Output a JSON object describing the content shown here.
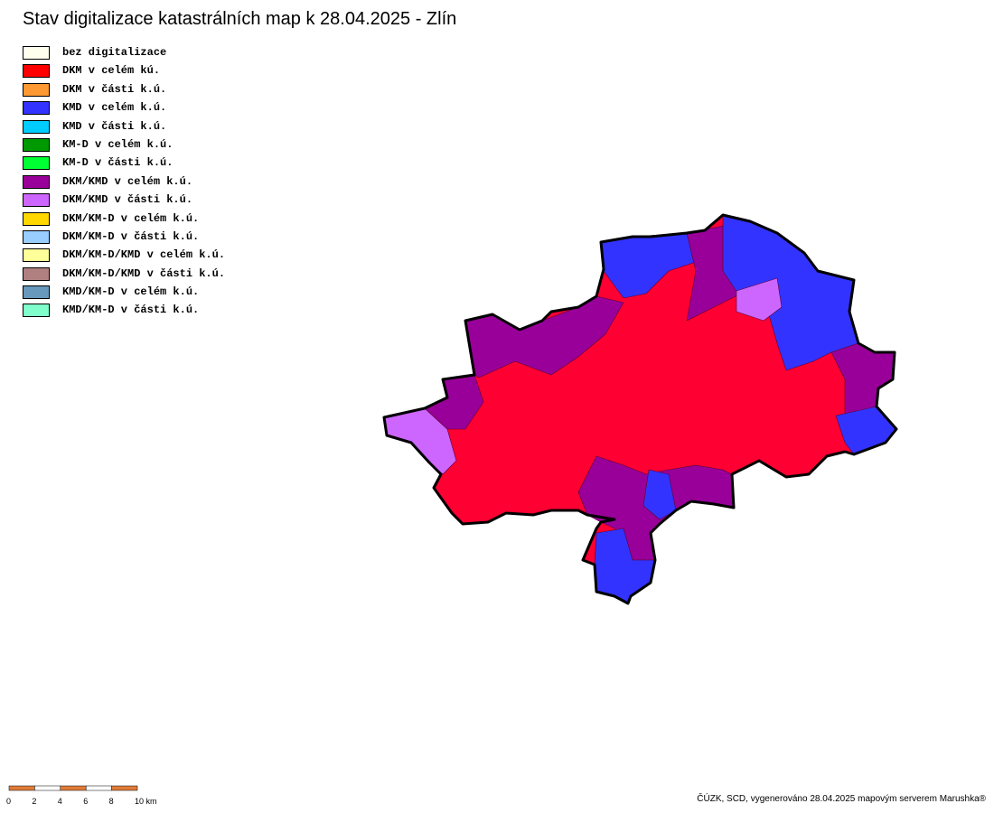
{
  "header": {
    "title": "Stav digitalizace katastrálních map k 28.04.2025 - Zlín"
  },
  "legend": {
    "items": [
      {
        "label": "bez digitalizace",
        "color": "#ffffee"
      },
      {
        "label": "DKM v celém kú.",
        "color": "#ff0000"
      },
      {
        "label": "DKM v části k.ú.",
        "color": "#ff9933"
      },
      {
        "label": "KMD v celém k.ú.",
        "color": "#3333ff"
      },
      {
        "label": "KMD v části k.ú.",
        "color": "#00ccff"
      },
      {
        "label": "KM-D v celém k.ú.",
        "color": "#009900"
      },
      {
        "label": "KM-D v části k.ú.",
        "color": "#00ff33"
      },
      {
        "label": "DKM/KMD v celém k.ú.",
        "color": "#990099"
      },
      {
        "label": "DKM/KMD v části k.ú.",
        "color": "#cc66ff"
      },
      {
        "label": "DKM/KM-D v celém k.ú.",
        "color": "#ffd700"
      },
      {
        "label": "DKM/KM-D v části k.ú.",
        "color": "#99ccff"
      },
      {
        "label": "DKM/KM-D/KMD v celém k.ú.",
        "color": "#ffff99"
      },
      {
        "label": "DKM/KM-D/KMD v části k.ú.",
        "color": "#b08080"
      },
      {
        "label": "KMD/KM-D v celém k.ú.",
        "color": "#6699bb"
      },
      {
        "label": "KMD/KM-D v části k.ú.",
        "color": "#80ffcc"
      }
    ]
  },
  "scale_bar": {
    "labels": [
      "0",
      "2",
      "4",
      "6",
      "8",
      "10 km"
    ]
  },
  "footer": {
    "credit": "ČÚZK, SCD, vygenerováno 28.04.2025 mapovým serverem Marushka®"
  }
}
